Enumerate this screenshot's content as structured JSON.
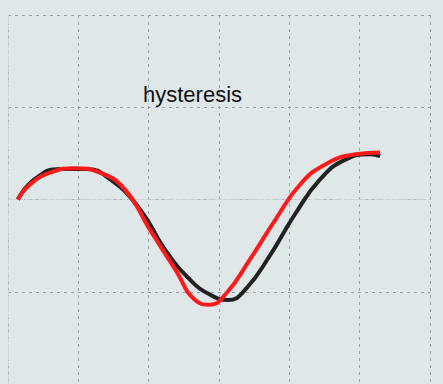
{
  "chart_data": {
    "type": "line",
    "title": "hysteresis",
    "xlim": [
      0,
      6
    ],
    "xticks": [
      0,
      1,
      2,
      3,
      4,
      5,
      6
    ],
    "ylim": [
      -2,
      2
    ],
    "yticks": [
      -2,
      -1,
      0,
      1,
      2
    ],
    "grid": true,
    "tick_labels": false,
    "series": [
      {
        "color": "#222222",
        "x": [
          0.14,
          0.38,
          0.74,
          1.1,
          1.45,
          1.88,
          2.23,
          2.59,
          2.87,
          3.13,
          3.37,
          3.73,
          4.08,
          4.44,
          4.79,
          5.15,
          5.29
        ],
        "values": [
          0,
          0.22,
          0.33,
          0.33,
          0.22,
          -0.11,
          -0.54,
          -0.87,
          -1.03,
          -1.09,
          -0.98,
          -0.6,
          -0.16,
          0.22,
          0.43,
          0.49,
          0.47
        ]
      },
      {
        "color": "#ff1a1a",
        "x": [
          0.14,
          0.31,
          0.6,
          0.95,
          1.31,
          1.66,
          2.02,
          2.38,
          2.66,
          2.87,
          3.09,
          3.44,
          3.8,
          4.15,
          4.51,
          4.94,
          5.29
        ],
        "values": [
          0,
          0.16,
          0.29,
          0.34,
          0.29,
          0.11,
          -0.33,
          -0.76,
          -1.09,
          -1.14,
          -1.03,
          -0.65,
          -0.22,
          0.16,
          0.38,
          0.49,
          0.51
        ]
      }
    ]
  }
}
